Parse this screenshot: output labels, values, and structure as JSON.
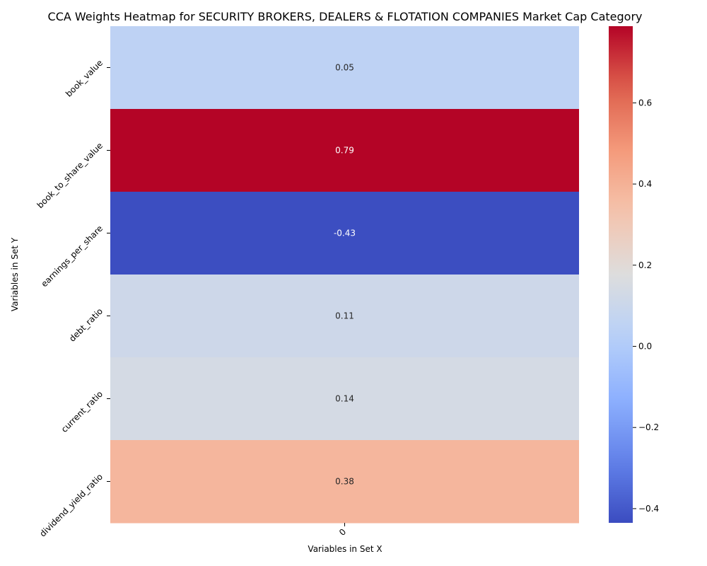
{
  "chart_data": {
    "type": "heatmap",
    "title": "CCA Weights Heatmap for SECURITY BROKERS, DEALERS & FLOTATION COMPANIES Market Cap Category",
    "xlabel": "Variables in Set X",
    "ylabel": "Variables in Set Y",
    "x_categories": [
      "0"
    ],
    "y_categories": [
      "book_value",
      "book_to_share_value",
      "earnings_per_share",
      "debt_ratio",
      "current_ratio",
      "dividend_yield_ratio"
    ],
    "values": [
      [
        0.05
      ],
      [
        0.79
      ],
      [
        -0.43
      ],
      [
        0.11
      ],
      [
        0.14
      ],
      [
        0.38
      ]
    ],
    "value_labels": [
      "0.05",
      "0.79",
      "-0.43",
      "0.11",
      "0.14",
      "0.38"
    ],
    "colormap": "coolwarm",
    "vmin": -0.435,
    "vmax": 0.789,
    "colorbar_ticks": [
      -0.4,
      -0.2,
      0.0,
      0.2,
      0.4,
      0.6
    ],
    "colorbar_tick_labels": [
      "−0.4",
      "−0.2",
      "0.0",
      "0.2",
      "0.4",
      "0.6"
    ],
    "grid": false,
    "legend": "colorbar-right"
  }
}
